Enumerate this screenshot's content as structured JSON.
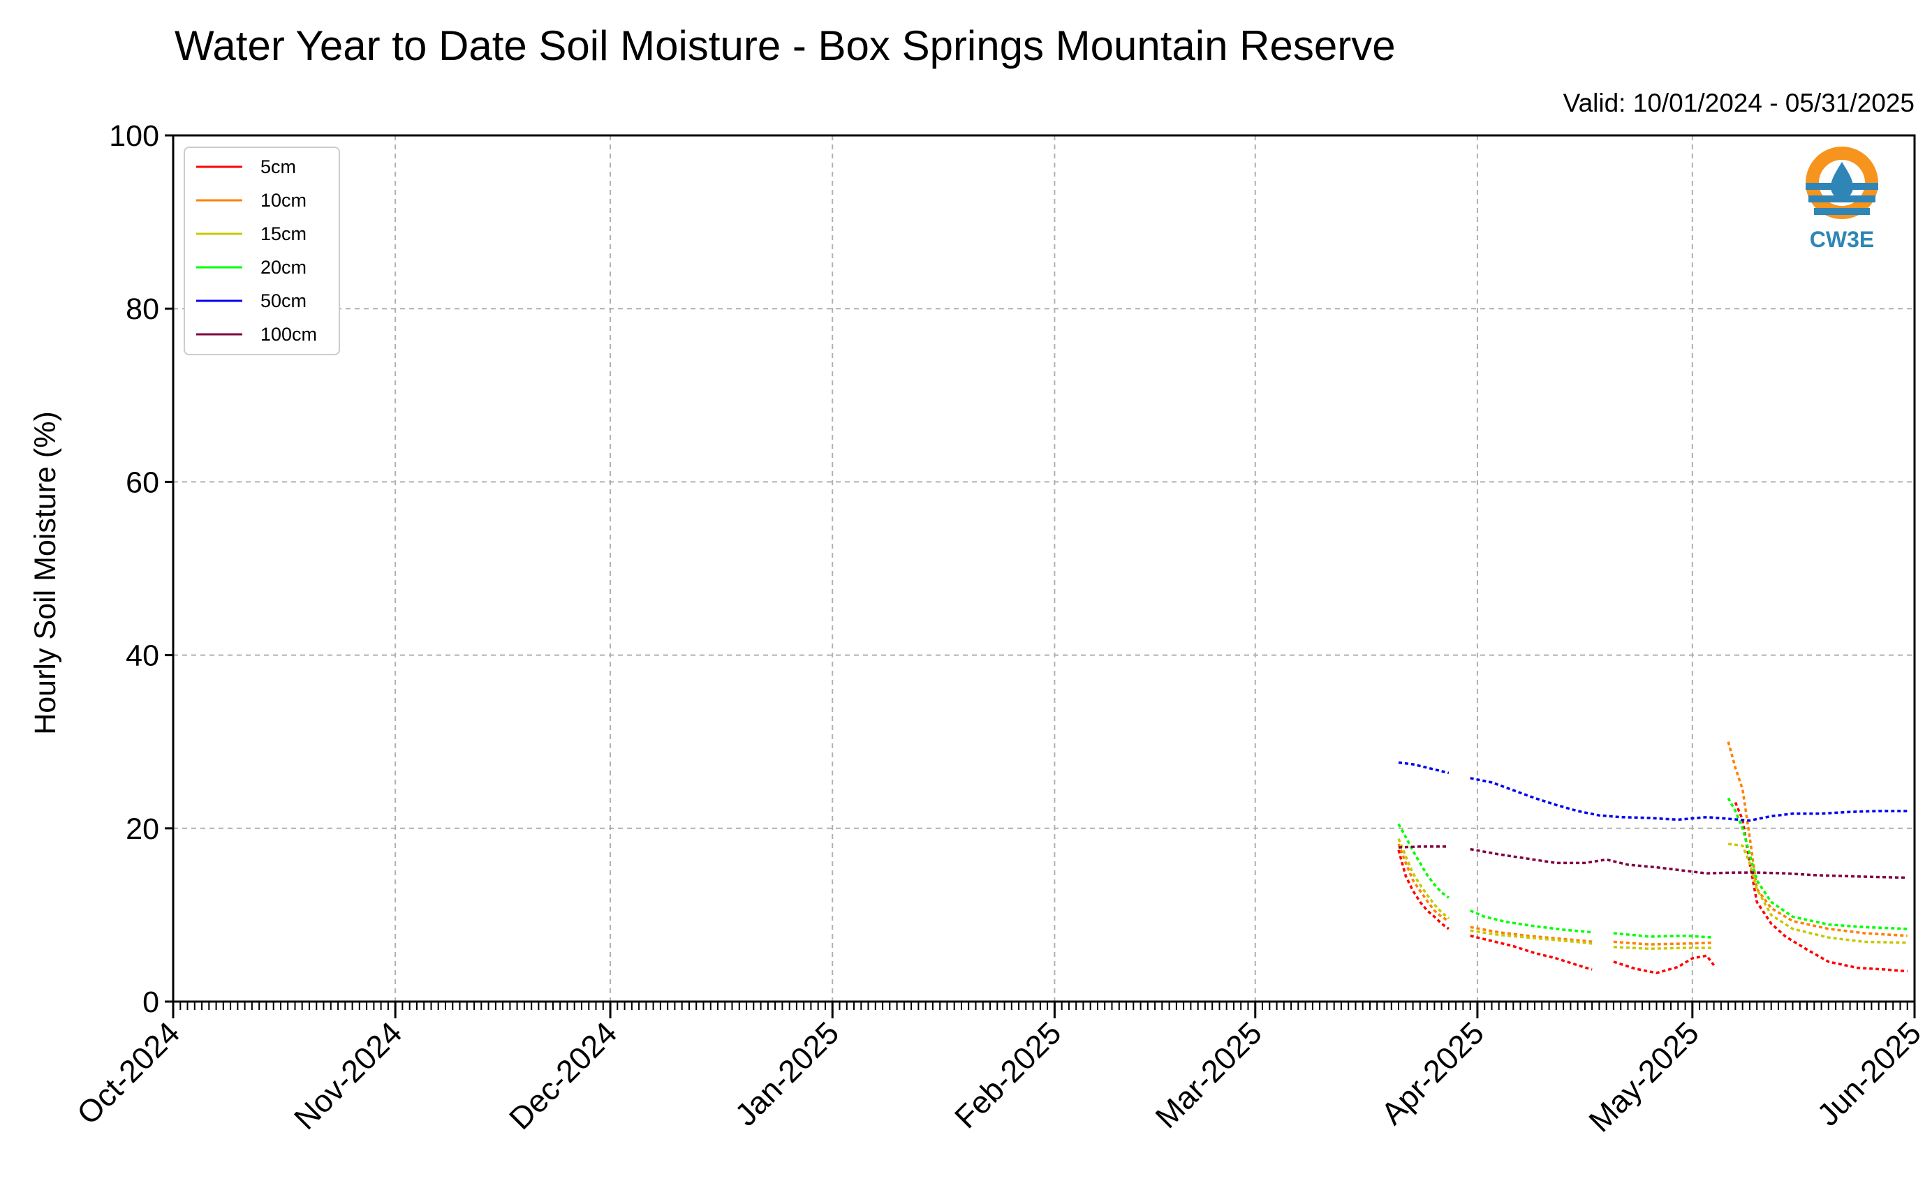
{
  "chart_data": {
    "type": "line",
    "title": "Water Year to Date Soil Moisture - Box Springs Mountain Reserve",
    "subtitle": "Valid: 10/01/2024 - 05/31/2025",
    "ylabel": "Hourly Soil Moisture (%)",
    "xlabel": "",
    "ylim": [
      0,
      100
    ],
    "yticks": [
      "0",
      "20",
      "40",
      "60",
      "80",
      "100"
    ],
    "xlim": [
      "2024-10-01",
      "2025-06-01"
    ],
    "xticks": [
      {
        "date": "2024-10-01",
        "label": "Oct-2024"
      },
      {
        "date": "2024-11-01",
        "label": "Nov-2024"
      },
      {
        "date": "2024-12-01",
        "label": "Dec-2024"
      },
      {
        "date": "2025-01-01",
        "label": "Jan-2025"
      },
      {
        "date": "2025-02-01",
        "label": "Feb-2025"
      },
      {
        "date": "2025-03-01",
        "label": "Mar-2025"
      },
      {
        "date": "2025-04-01",
        "label": "Apr-2025"
      },
      {
        "date": "2025-05-01",
        "label": "May-2025"
      },
      {
        "date": "2025-06-01",
        "label": "Jun-2025"
      }
    ],
    "grid": true,
    "legend_position": "top-left",
    "logo_text": "CW3E",
    "series": [
      {
        "name": "5cm",
        "color": "#ff0000",
        "segments": [
          [
            [
              "2025-03-21",
              17.5
            ],
            [
              "2025-03-22",
              14.5
            ],
            [
              "2025-03-23",
              12.8
            ],
            [
              "2025-03-24",
              11.5
            ],
            [
              "2025-03-25",
              10.5
            ],
            [
              "2025-03-26",
              9.8
            ],
            [
              "2025-03-27",
              9.0
            ],
            [
              "2025-03-28",
              8.4
            ]
          ],
          [
            [
              "2025-03-31",
              7.6
            ],
            [
              "2025-04-03",
              7.0
            ],
            [
              "2025-04-06",
              6.4
            ],
            [
              "2025-04-09",
              5.6
            ],
            [
              "2025-04-12",
              5.0
            ],
            [
              "2025-04-15",
              4.2
            ],
            [
              "2025-04-17",
              3.7
            ]
          ],
          [
            [
              "2025-04-20",
              4.6
            ],
            [
              "2025-04-23",
              3.8
            ],
            [
              "2025-04-26",
              3.3
            ],
            [
              "2025-04-29",
              4.0
            ],
            [
              "2025-05-01",
              5.0
            ],
            [
              "2025-05-03",
              5.3
            ],
            [
              "2025-05-04",
              4.2
            ]
          ],
          [
            [
              "2025-05-07",
              23.0
            ],
            [
              "2025-05-08",
              21.0
            ],
            [
              "2025-05-09",
              16.0
            ],
            [
              "2025-05-10",
              11.5
            ],
            [
              "2025-05-12",
              9.0
            ],
            [
              "2025-05-14",
              7.5
            ],
            [
              "2025-05-17",
              6.0
            ],
            [
              "2025-05-20",
              4.6
            ],
            [
              "2025-05-24",
              3.9
            ],
            [
              "2025-05-28",
              3.7
            ],
            [
              "2025-05-31",
              3.5
            ]
          ]
        ]
      },
      {
        "name": "10cm",
        "color": "#ff8000",
        "segments": [
          [
            [
              "2025-03-21",
              18.2
            ],
            [
              "2025-03-22",
              16.0
            ],
            [
              "2025-03-23",
              14.0
            ],
            [
              "2025-03-24",
              12.8
            ],
            [
              "2025-03-25",
              11.6
            ],
            [
              "2025-03-26",
              10.5
            ],
            [
              "2025-03-27",
              9.8
            ],
            [
              "2025-03-28",
              9.3
            ]
          ],
          [
            [
              "2025-03-31",
              8.6
            ],
            [
              "2025-04-04",
              8.0
            ],
            [
              "2025-04-08",
              7.6
            ],
            [
              "2025-04-12",
              7.3
            ],
            [
              "2025-04-16",
              7.0
            ],
            [
              "2025-04-17",
              6.9
            ]
          ],
          [
            [
              "2025-04-20",
              6.9
            ],
            [
              "2025-04-25",
              6.6
            ],
            [
              "2025-04-30",
              6.7
            ],
            [
              "2025-05-04",
              6.8
            ]
          ],
          [
            [
              "2025-05-06",
              30.0
            ],
            [
              "2025-05-07",
              27.0
            ],
            [
              "2025-05-08",
              24.5
            ],
            [
              "2025-05-09",
              19.0
            ],
            [
              "2025-05-10",
              13.0
            ],
            [
              "2025-05-12",
              10.8
            ],
            [
              "2025-05-15",
              9.3
            ],
            [
              "2025-05-20",
              8.4
            ],
            [
              "2025-05-25",
              7.9
            ],
            [
              "2025-05-31",
              7.6
            ]
          ]
        ]
      },
      {
        "name": "15cm",
        "color": "#c8c800",
        "segments": [
          [
            [
              "2025-03-21",
              18.8
            ],
            [
              "2025-03-22",
              16.8
            ],
            [
              "2025-03-23",
              14.8
            ],
            [
              "2025-03-24",
              13.5
            ],
            [
              "2025-03-25",
              12.3
            ],
            [
              "2025-03-26",
              11.2
            ],
            [
              "2025-03-27",
              10.3
            ],
            [
              "2025-03-28",
              9.6
            ]
          ],
          [
            [
              "2025-03-31",
              8.2
            ],
            [
              "2025-04-04",
              7.7
            ],
            [
              "2025-04-08",
              7.4
            ],
            [
              "2025-04-12",
              7.1
            ],
            [
              "2025-04-16",
              6.8
            ],
            [
              "2025-04-17",
              6.7
            ]
          ],
          [
            [
              "2025-04-20",
              6.3
            ],
            [
              "2025-04-25",
              6.1
            ],
            [
              "2025-04-30",
              6.2
            ],
            [
              "2025-05-04",
              6.2
            ]
          ],
          [
            [
              "2025-05-06",
              18.2
            ],
            [
              "2025-05-08",
              18.0
            ],
            [
              "2025-05-09",
              16.0
            ],
            [
              "2025-05-10",
              13.0
            ],
            [
              "2025-05-12",
              10.0
            ],
            [
              "2025-05-15",
              8.4
            ],
            [
              "2025-05-20",
              7.4
            ],
            [
              "2025-05-25",
              6.9
            ],
            [
              "2025-05-31",
              6.8
            ]
          ]
        ]
      },
      {
        "name": "20cm",
        "color": "#00ff00",
        "segments": [
          [
            [
              "2025-03-21",
              20.5
            ],
            [
              "2025-03-22",
              19.0
            ],
            [
              "2025-03-23",
              17.4
            ],
            [
              "2025-03-24",
              16.0
            ],
            [
              "2025-03-25",
              14.6
            ],
            [
              "2025-03-26",
              13.5
            ],
            [
              "2025-03-27",
              12.6
            ],
            [
              "2025-03-28",
              12.0
            ]
          ],
          [
            [
              "2025-03-31",
              10.5
            ],
            [
              "2025-04-02",
              9.8
            ],
            [
              "2025-04-05",
              9.2
            ],
            [
              "2025-04-09",
              8.7
            ],
            [
              "2025-04-13",
              8.3
            ],
            [
              "2025-04-17",
              8.0
            ]
          ],
          [
            [
              "2025-04-20",
              7.9
            ],
            [
              "2025-04-25",
              7.5
            ],
            [
              "2025-04-30",
              7.6
            ],
            [
              "2025-05-04",
              7.4
            ]
          ],
          [
            [
              "2025-05-06",
              23.5
            ],
            [
              "2025-05-07",
              22.0
            ],
            [
              "2025-05-08",
              20.0
            ],
            [
              "2025-05-09",
              17.0
            ],
            [
              "2025-05-10",
              14.0
            ],
            [
              "2025-05-12",
              11.5
            ],
            [
              "2025-05-15",
              9.8
            ],
            [
              "2025-05-20",
              8.9
            ],
            [
              "2025-05-25",
              8.6
            ],
            [
              "2025-05-31",
              8.4
            ]
          ]
        ]
      },
      {
        "name": "50cm",
        "color": "#0000ee",
        "segments": [
          [
            [
              "2025-03-21",
              27.6
            ],
            [
              "2025-03-23",
              27.4
            ],
            [
              "2025-03-25",
              27.0
            ],
            [
              "2025-03-28",
              26.4
            ]
          ],
          [
            [
              "2025-03-31",
              25.8
            ],
            [
              "2025-04-03",
              25.3
            ],
            [
              "2025-04-06",
              24.4
            ],
            [
              "2025-04-09",
              23.5
            ],
            [
              "2025-04-12",
              22.7
            ],
            [
              "2025-04-15",
              22.0
            ],
            [
              "2025-04-18",
              21.5
            ],
            [
              "2025-04-21",
              21.3
            ],
            [
              "2025-04-25",
              21.2
            ],
            [
              "2025-04-29",
              21.0
            ],
            [
              "2025-05-03",
              21.3
            ],
            [
              "2025-05-06",
              21.1
            ],
            [
              "2025-05-09",
              20.9
            ],
            [
              "2025-05-12",
              21.4
            ],
            [
              "2025-05-15",
              21.7
            ],
            [
              "2025-05-19",
              21.7
            ],
            [
              "2025-05-23",
              21.9
            ],
            [
              "2025-05-27",
              22.0
            ],
            [
              "2025-05-31",
              22.0
            ]
          ]
        ]
      },
      {
        "name": "100cm",
        "color": "#800040",
        "segments": [
          [
            [
              "2025-03-21",
              17.8
            ],
            [
              "2025-03-24",
              17.9
            ],
            [
              "2025-03-28",
              17.9
            ]
          ],
          [
            [
              "2025-03-31",
              17.6
            ],
            [
              "2025-04-04",
              17.0
            ],
            [
              "2025-04-08",
              16.5
            ],
            [
              "2025-04-12",
              16.0
            ],
            [
              "2025-04-16",
              16.0
            ],
            [
              "2025-04-19",
              16.4
            ],
            [
              "2025-04-22",
              15.8
            ],
            [
              "2025-04-26",
              15.5
            ],
            [
              "2025-04-30",
              15.1
            ],
            [
              "2025-05-03",
              14.8
            ],
            [
              "2025-05-07",
              14.9
            ],
            [
              "2025-05-10",
              14.9
            ],
            [
              "2025-05-14",
              14.8
            ],
            [
              "2025-05-18",
              14.6
            ],
            [
              "2025-05-22",
              14.5
            ],
            [
              "2025-05-26",
              14.4
            ],
            [
              "2025-05-31",
              14.3
            ]
          ]
        ]
      }
    ]
  }
}
